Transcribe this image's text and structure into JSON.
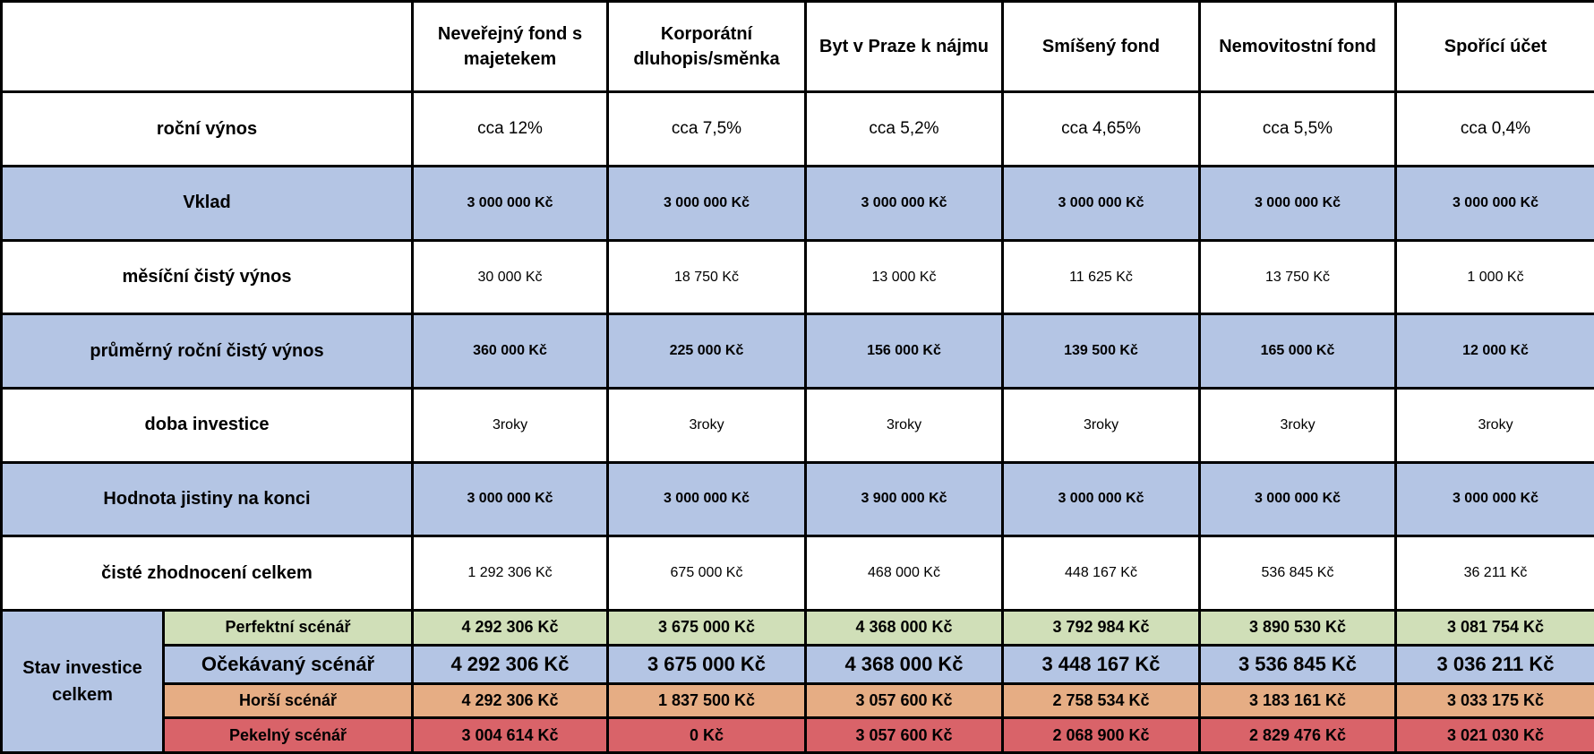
{
  "columns": [
    "Neveřejný fond s majetekem",
    "Korporátní dluhopis/směnka",
    "Byt v Praze k nájmu",
    "Smíšený fond",
    "Nemovitostní fond",
    "Spořící účet"
  ],
  "rows": [
    {
      "label": "roční výnos",
      "values": [
        "cca 12%",
        "cca 7,5%",
        "cca 5,2%",
        "cca 4,65%",
        "cca 5,5%",
        "cca 0,4%"
      ]
    },
    {
      "label": "Vklad",
      "values": [
        "3 000 000 Kč",
        "3 000 000 Kč",
        "3 000 000 Kč",
        "3 000 000 Kč",
        "3 000 000 Kč",
        "3 000 000 Kč"
      ]
    },
    {
      "label": "měsíční čistý výnos",
      "values": [
        "30 000 Kč",
        "18 750 Kč",
        "13 000 Kč",
        "11 625 Kč",
        "13 750 Kč",
        "1 000 Kč"
      ]
    },
    {
      "label": "průměrný roční čistý výnos",
      "values": [
        "360 000 Kč",
        "225 000 Kč",
        "156 000 Kč",
        "139 500 Kč",
        "165 000 Kč",
        "12 000 Kč"
      ]
    },
    {
      "label": "doba investice",
      "values": [
        "3roky",
        "3roky",
        "3roky",
        "3roky",
        "3roky",
        "3roky"
      ]
    },
    {
      "label": "Hodnota jistiny na konci",
      "values": [
        "3 000 000 Kč",
        "3 000 000 Kč",
        "3 900 000 Kč",
        "3 000 000 Kč",
        "3 000 000 Kč",
        "3 000 000 Kč"
      ]
    },
    {
      "label": "čisté zhodnocení celkem",
      "values": [
        "1 292 306 Kč",
        "675 000 Kč",
        "468 000 Kč",
        "448 167 Kč",
        "536 845 Kč",
        "36 211 Kč"
      ]
    }
  ],
  "group_label": "Stav investice celkem",
  "scenarios": [
    {
      "label": "Perfektní scénář",
      "values": [
        "4 292 306 Kč",
        "3 675 000 Kč",
        "4 368 000 Kč",
        "3 792 984 Kč",
        "3 890 530 Kč",
        "3 081 754 Kč"
      ],
      "color": "#d0dfb8"
    },
    {
      "label": "Očekávaný scénář",
      "values": [
        "4 292 306 Kč",
        "3 675 000 Kč",
        "4 368 000 Kč",
        "3 448 167 Kč",
        "3 536 845 Kč",
        "3 036 211 Kč"
      ],
      "color": "#b4c5e4"
    },
    {
      "label": "Horší scénář",
      "values": [
        "4 292 306 Kč",
        "1 837 500 Kč",
        "3 057 600 Kč",
        "2 758 534 Kč",
        "3 183 161 Kč",
        "3 033 175 Kč"
      ],
      "color": "#e6ad84"
    },
    {
      "label": "Pekelný scénář",
      "values": [
        "3 004 614 Kč",
        "0 Kč",
        "3 057 600 Kč",
        "2 068 900 Kč",
        "2 829 476 Kč",
        "3 021 030 Kč"
      ],
      "color": "#d96369"
    }
  ]
}
